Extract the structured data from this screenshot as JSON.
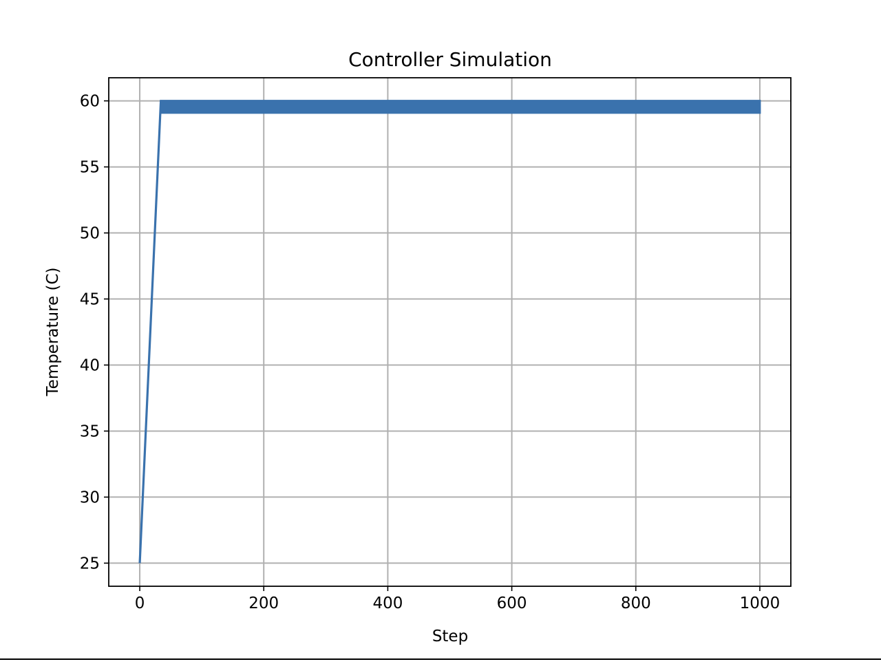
{
  "chart_data": {
    "type": "line",
    "title": "Controller Simulation",
    "xlabel": "Step",
    "ylabel": "Temperature (C)",
    "xlim": [
      -50,
      1050
    ],
    "ylim": [
      23.25,
      61.75
    ],
    "xticks": [
      0,
      200,
      400,
      600,
      800,
      1000
    ],
    "yticks": [
      25,
      30,
      35,
      40,
      45,
      50,
      55,
      60
    ],
    "grid": true,
    "series": [
      {
        "color": "#3a72ad",
        "ramp": {
          "x": [
            0,
            34
          ],
          "y": [
            25,
            60
          ]
        },
        "oscillation": {
          "x_start": 34,
          "x_end": 1000,
          "y_low": 59.1,
          "y_high": 60.0
        }
      }
    ]
  }
}
